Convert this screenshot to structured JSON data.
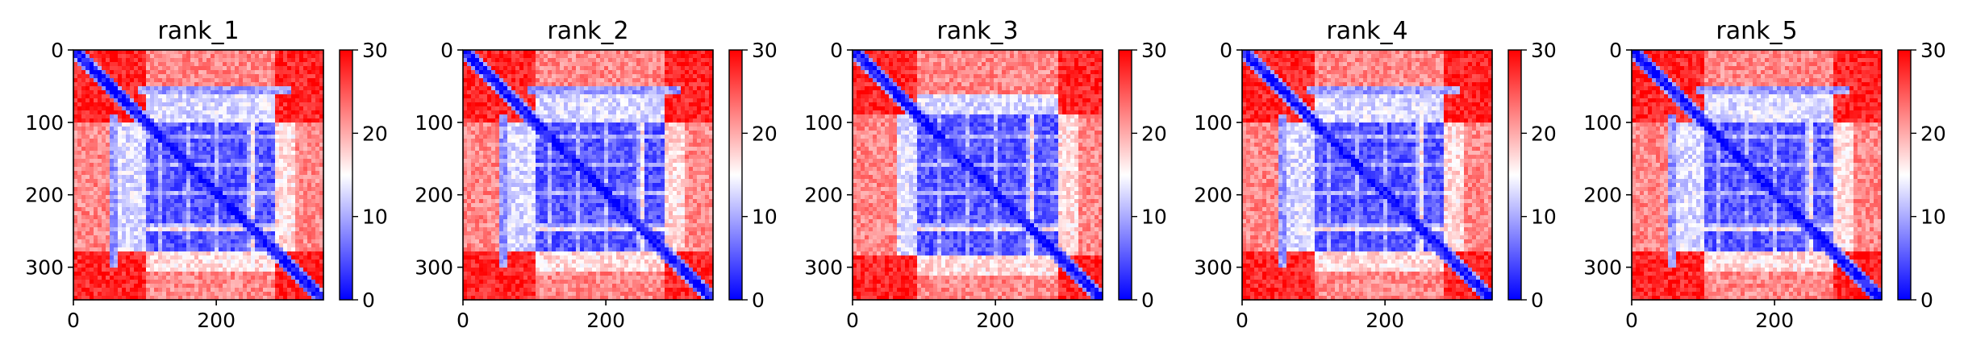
{
  "chart_data": [
    {
      "type": "heatmap",
      "title": "rank_1",
      "xlim": [
        0,
        350
      ],
      "ylim": [
        345,
        0
      ],
      "x_ticks": [
        "0",
        "200"
      ],
      "x_tick_values": [
        0,
        200
      ],
      "y_ticks": [
        "0",
        "100",
        "200",
        "300"
      ],
      "y_tick_values": [
        0,
        100,
        200,
        300
      ],
      "colorbar": {
        "range": [
          0,
          30
        ],
        "ticks": [
          "0",
          "10",
          "20",
          "30"
        ],
        "tick_values": [
          0,
          10,
          20,
          30
        ]
      },
      "structure": {
        "low_block": [
          100,
          280
        ],
        "n_term_low": [
          50,
          60
        ],
        "diagonal": true
      }
    },
    {
      "type": "heatmap",
      "title": "rank_2",
      "xlim": [
        0,
        350
      ],
      "ylim": [
        345,
        0
      ],
      "x_ticks": [
        "0",
        "200"
      ],
      "x_tick_values": [
        0,
        200
      ],
      "y_ticks": [
        "0",
        "100",
        "200",
        "300"
      ],
      "y_tick_values": [
        0,
        100,
        200,
        300
      ],
      "colorbar": {
        "range": [
          0,
          30
        ],
        "ticks": [
          "0",
          "10",
          "20",
          "30"
        ],
        "tick_values": [
          0,
          10,
          20,
          30
        ]
      },
      "structure": {
        "low_block": [
          100,
          280
        ],
        "n_term_low": [
          50,
          60
        ],
        "diagonal": true
      }
    },
    {
      "type": "heatmap",
      "title": "rank_3",
      "xlim": [
        0,
        350
      ],
      "ylim": [
        345,
        0
      ],
      "x_ticks": [
        "0",
        "200"
      ],
      "x_tick_values": [
        0,
        200
      ],
      "y_ticks": [
        "0",
        "100",
        "200",
        "300"
      ],
      "y_tick_values": [
        0,
        100,
        200,
        300
      ],
      "colorbar": {
        "range": [
          0,
          30
        ],
        "ticks": [
          "0",
          "10",
          "20",
          "30"
        ],
        "tick_values": [
          0,
          10,
          20,
          30
        ]
      },
      "structure": {
        "low_block": [
          90,
          285
        ],
        "n_term_low": null,
        "diagonal": true
      }
    },
    {
      "type": "heatmap",
      "title": "rank_4",
      "xlim": [
        0,
        350
      ],
      "ylim": [
        345,
        0
      ],
      "x_ticks": [
        "0",
        "200"
      ],
      "x_tick_values": [
        0,
        200
      ],
      "y_ticks": [
        "0",
        "100",
        "200",
        "300"
      ],
      "y_tick_values": [
        0,
        100,
        200,
        300
      ],
      "colorbar": {
        "range": [
          0,
          30
        ],
        "ticks": [
          "0",
          "10",
          "20",
          "30"
        ],
        "tick_values": [
          0,
          10,
          20,
          30
        ]
      },
      "structure": {
        "low_block": [
          100,
          280
        ],
        "n_term_low": [
          50,
          60
        ],
        "diagonal": true
      }
    },
    {
      "type": "heatmap",
      "title": "rank_5",
      "xlim": [
        0,
        350
      ],
      "ylim": [
        345,
        0
      ],
      "x_ticks": [
        "0",
        "200"
      ],
      "x_tick_values": [
        0,
        200
      ],
      "y_ticks": [
        "0",
        "100",
        "200",
        "300"
      ],
      "y_tick_values": [
        0,
        100,
        200,
        300
      ],
      "colorbar": {
        "range": [
          0,
          30
        ],
        "ticks": [
          "0",
          "10",
          "20",
          "30"
        ],
        "tick_values": [
          0,
          10,
          20,
          30
        ]
      },
      "structure": {
        "low_block": [
          100,
          280
        ],
        "n_term_low": [
          50,
          60
        ],
        "diagonal": true
      }
    }
  ],
  "colors": {
    "low": "#0000ff",
    "mid": "#ffffff",
    "high": "#ff0000"
  }
}
